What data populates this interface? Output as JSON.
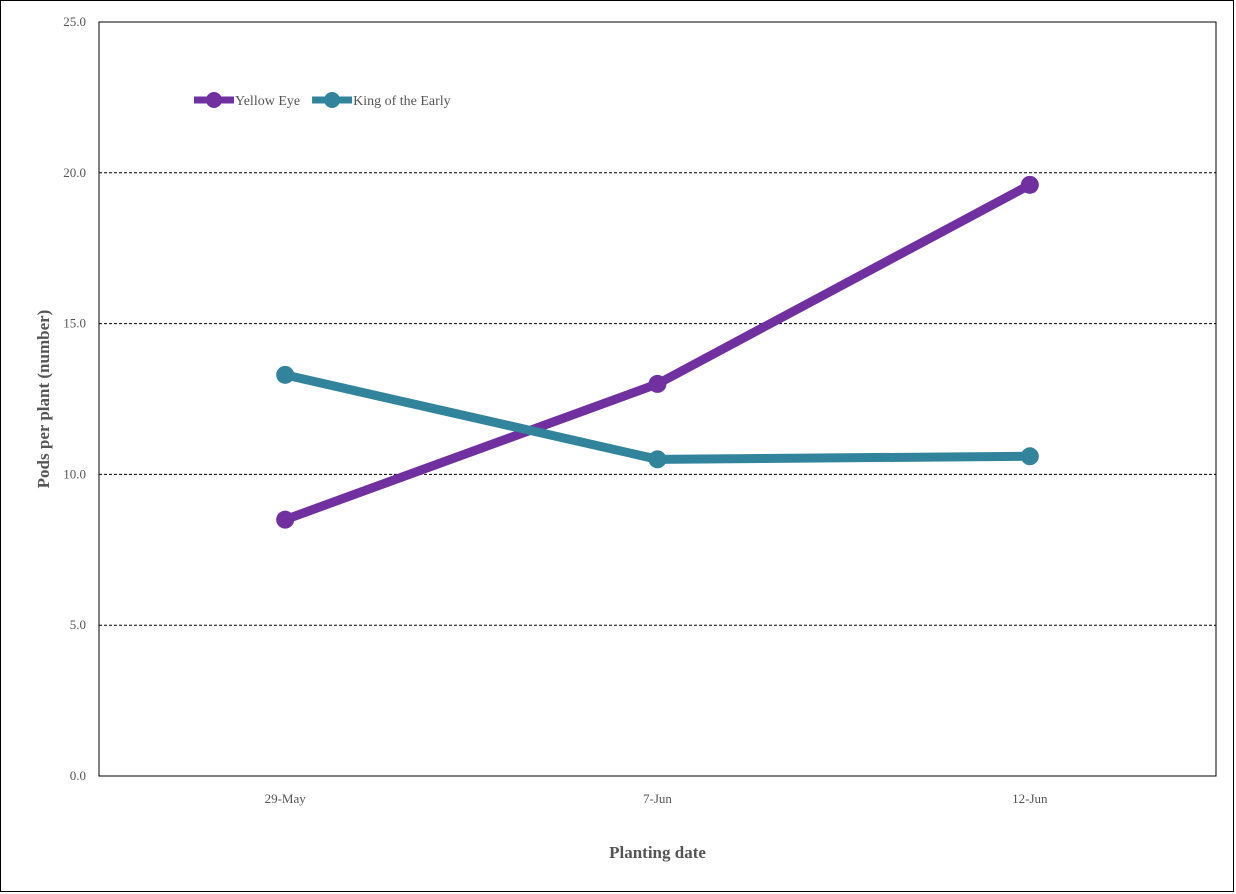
{
  "chart_data": {
    "type": "line",
    "categories": [
      "29-May",
      "7-Jun",
      "12-Jun"
    ],
    "series": [
      {
        "name": "Yellow Eye",
        "values": [
          8.5,
          13.0,
          19.6
        ],
        "color": "#7030a0"
      },
      {
        "name": "King of the Early",
        "values": [
          13.3,
          10.5,
          10.6
        ],
        "color": "#31849b"
      }
    ],
    "xlabel": "Planting date",
    "ylabel": "Pods per plant (number)",
    "ylim": [
      0,
      25
    ],
    "yticks": [
      "0.0",
      "5.0",
      "10.0",
      "15.0",
      "20.0",
      "25.0"
    ],
    "ytick_values": [
      0,
      5,
      10,
      15,
      20,
      25
    ],
    "grid": "dashed horizontal",
    "legend_position": "top-left"
  }
}
